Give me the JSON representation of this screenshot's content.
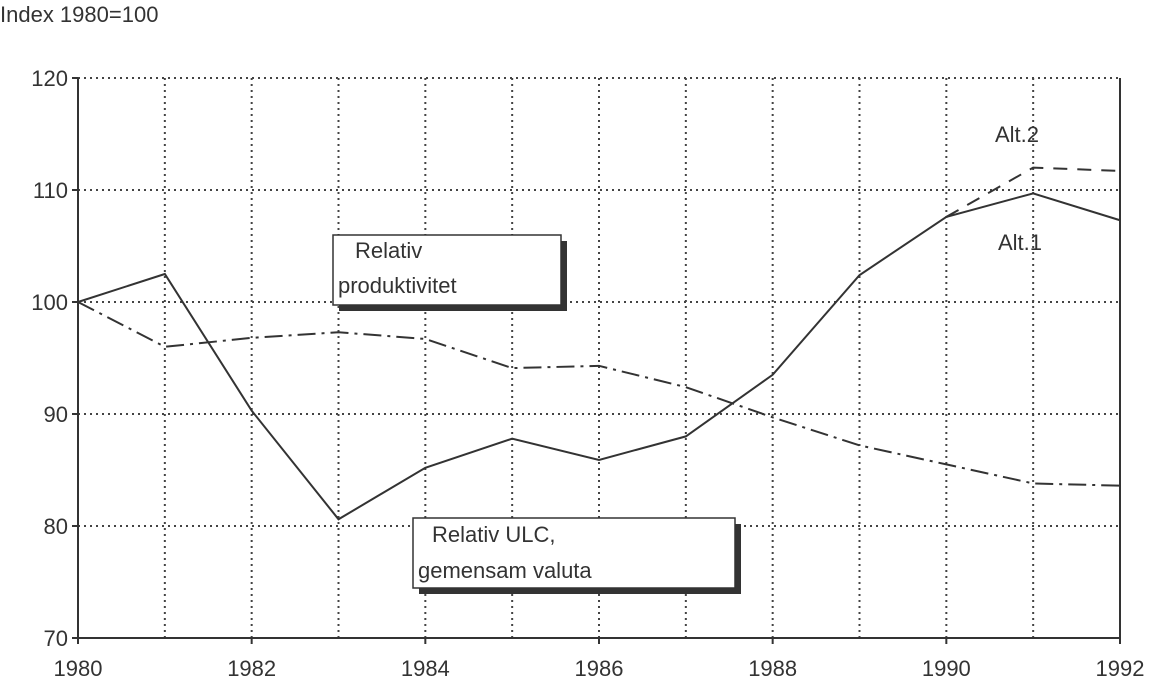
{
  "chart_data": {
    "type": "line",
    "title": "Index 1980=100",
    "xlabel": "",
    "ylabel": "Index 1980=100",
    "x": [
      1980,
      1981,
      1982,
      1983,
      1984,
      1985,
      1986,
      1987,
      1988,
      1989,
      1990,
      1991,
      1992
    ],
    "xlim": [
      1980,
      1992
    ],
    "ylim": [
      70,
      120
    ],
    "xticks": [
      "1980",
      "1982",
      "1984",
      "1986",
      "1988",
      "1990",
      "1992"
    ],
    "yticks": [
      "70",
      "80",
      "90",
      "100",
      "110",
      "120"
    ],
    "grid": true,
    "series": [
      {
        "name": "Relativ ULC, gemensam valuta (Alt.1)",
        "style": "solid",
        "x": [
          1980,
          1981,
          1982,
          1983,
          1984,
          1985,
          1986,
          1987,
          1988,
          1989,
          1990,
          1991,
          1992
        ],
        "values": [
          100,
          102.5,
          90.3,
          80.6,
          85.2,
          87.8,
          85.9,
          88.0,
          93.5,
          102.4,
          107.6,
          109.7,
          107.3
        ]
      },
      {
        "name": "Alt.2",
        "style": "dashed",
        "x": [
          1990,
          1991,
          1992
        ],
        "values": [
          107.6,
          112.0,
          111.7
        ]
      },
      {
        "name": "Relativ produktivitet",
        "style": "dashdot",
        "x": [
          1980,
          1981,
          1982,
          1983,
          1984,
          1985,
          1986,
          1987,
          1988,
          1989,
          1990,
          1991,
          1992
        ],
        "values": [
          100,
          96.0,
          96.8,
          97.3,
          96.7,
          94.1,
          94.3,
          92.4,
          89.7,
          87.2,
          85.5,
          83.8,
          83.6
        ]
      }
    ],
    "annotations": {
      "alt1": "Alt.1",
      "alt2": "Alt.2",
      "prod_line1": "Relativ",
      "prod_line2": "produktivitet",
      "ulc_line1": "Relativ ULC,",
      "ulc_line2": "gemensam valuta"
    }
  }
}
